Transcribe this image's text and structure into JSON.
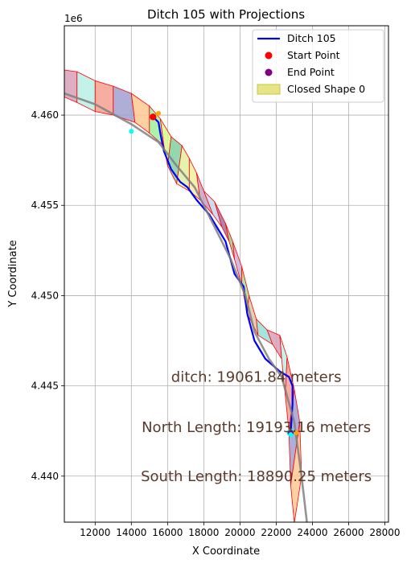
{
  "chart_data": {
    "type": "line",
    "title": "Ditch 105 with Projections",
    "xlabel": "X Coordinate",
    "ylabel": "Y Coordinate",
    "y_offset_label": "1e6",
    "xlim": [
      10300,
      28200
    ],
    "ylim": [
      4.43745,
      4.46495
    ],
    "x_ticks": [
      12000,
      14000,
      16000,
      18000,
      20000,
      22000,
      24000,
      26000,
      28000
    ],
    "x_tick_labels": [
      "12000",
      "14000",
      "16000",
      "18000",
      "20000",
      "22000",
      "24000",
      "26000",
      "28000"
    ],
    "y_ticks": [
      4.44,
      4.445,
      4.45,
      4.455,
      4.46
    ],
    "y_tick_labels": [
      "4.440",
      "4.445",
      "4.450",
      "4.455",
      "4.460"
    ],
    "grid": true,
    "legend_position": "top-right",
    "legend": [
      {
        "label": "Ditch 105",
        "kind": "line",
        "color": "#0000ff"
      },
      {
        "label": "Start Point",
        "kind": "marker",
        "color": "#ff0000"
      },
      {
        "label": "End Point",
        "kind": "marker",
        "color": "#800080"
      },
      {
        "label": "Closed Shape 0",
        "kind": "patch",
        "color": "#dede6a"
      }
    ],
    "annotations": [
      {
        "text": "ditch: 19061.84 meters",
        "x": 20900,
        "y": 4.4455
      },
      {
        "text": "North Length: 19193.16 meters",
        "x": 20900,
        "y": 4.4427
      },
      {
        "text": "South Length: 18890.25 meters",
        "x": 20900,
        "y": 4.44
      }
    ],
    "series": [
      {
        "name": "Ditch 105",
        "color": "#0000ff",
        "x": [
          15200,
          15500,
          15600,
          15800,
          16200,
          16700,
          17100,
          17600,
          18300,
          19200,
          19700,
          20200,
          20400,
          20800,
          21400,
          22200,
          22700,
          22900,
          22900,
          22800
        ],
        "y": [
          4.4599,
          4.4596,
          4.459,
          4.458,
          4.457,
          4.4563,
          4.456,
          4.4553,
          4.4545,
          4.453,
          4.4512,
          4.4505,
          4.449,
          4.4475,
          4.4465,
          4.4458,
          4.4455,
          4.445,
          4.444,
          4.4424
        ]
      },
      {
        "name": "",
        "color": "#808080",
        "x": [
          10300,
          12000,
          14000,
          15500,
          16500,
          17500,
          18500,
          19500,
          20300,
          20800,
          21600,
          22300,
          23000,
          23400,
          23700
        ],
        "y": [
          4.4612,
          4.4606,
          4.4595,
          4.4585,
          4.4572,
          4.456,
          4.454,
          4.452,
          4.45,
          4.448,
          4.4465,
          4.4455,
          4.443,
          4.44,
          4.4374
        ]
      }
    ],
    "points": [
      {
        "role": "start",
        "x": 15200,
        "y": 4.4599,
        "color": "#ff0000"
      },
      {
        "role": "end",
        "x": 22800,
        "y": 4.4424,
        "color": "#800080"
      },
      {
        "role": "projection",
        "x": 15500,
        "y": 4.4601,
        "color": "#ffa500"
      },
      {
        "role": "projection",
        "x": 14000,
        "y": 4.4591,
        "color": "#00ffff"
      },
      {
        "role": "projection",
        "x": 22800,
        "y": 4.4423,
        "color": "#00ffff"
      },
      {
        "role": "projection",
        "x": 23100,
        "y": 4.4424,
        "color": "#ffa500"
      }
    ],
    "corridor": {
      "north": [
        [
          10300,
          4.4625
        ],
        [
          11000,
          4.4624
        ],
        [
          12000,
          4.4619
        ],
        [
          13000,
          4.4616
        ],
        [
          14000,
          4.4612
        ],
        [
          15000,
          4.4605
        ],
        [
          15600,
          4.4598
        ],
        [
          16200,
          4.4588
        ],
        [
          16800,
          4.4583
        ],
        [
          17200,
          4.4576
        ],
        [
          17600,
          4.4568
        ],
        [
          18000,
          4.4558
        ],
        [
          18600,
          4.4552
        ],
        [
          19200,
          4.454
        ],
        [
          19600,
          4.453
        ],
        [
          20100,
          4.4516
        ],
        [
          20500,
          4.45
        ],
        [
          20900,
          4.4487
        ],
        [
          21500,
          4.4481
        ],
        [
          22200,
          4.4478
        ],
        [
          22600,
          4.4466
        ],
        [
          23000,
          4.4448
        ],
        [
          23300,
          4.443
        ],
        [
          23400,
          4.44
        ],
        [
          23600,
          4.4374
        ]
      ],
      "south": [
        [
          23000,
          4.4374
        ],
        [
          22800,
          4.4395
        ],
        [
          22700,
          4.4425
        ],
        [
          22500,
          4.4445
        ],
        [
          22300,
          4.4465
        ],
        [
          21800,
          4.4473
        ],
        [
          21000,
          4.4478
        ],
        [
          20400,
          4.449
        ],
        [
          20100,
          4.4506
        ],
        [
          19700,
          4.452
        ],
        [
          19400,
          4.453
        ],
        [
          19000,
          4.4538
        ],
        [
          18500,
          4.4545
        ],
        [
          17800,
          4.4553
        ],
        [
          17200,
          4.4558
        ],
        [
          16500,
          4.4562
        ],
        [
          16000,
          4.4572
        ],
        [
          15800,
          4.4583
        ],
        [
          15000,
          4.459
        ],
        [
          14200,
          4.4596
        ],
        [
          13000,
          4.46
        ],
        [
          12000,
          4.4602
        ],
        [
          11000,
          4.4607
        ],
        [
          10300,
          4.461
        ]
      ]
    },
    "cell_colors": [
      "#d8a0b8",
      "#b7f0e6",
      "#f4a090",
      "#a0a0d0",
      "#ffc890",
      "#9cf09c",
      "#d8f890",
      "#80d0a0",
      "#e0f0a0",
      "#f0f0a0",
      "#c8a0c8",
      "#c0d8f0",
      "#a070a0",
      "#90d090",
      "#c8b0d8",
      "#a0e090",
      "#e0c8a0",
      "#90e0d8"
    ]
  }
}
